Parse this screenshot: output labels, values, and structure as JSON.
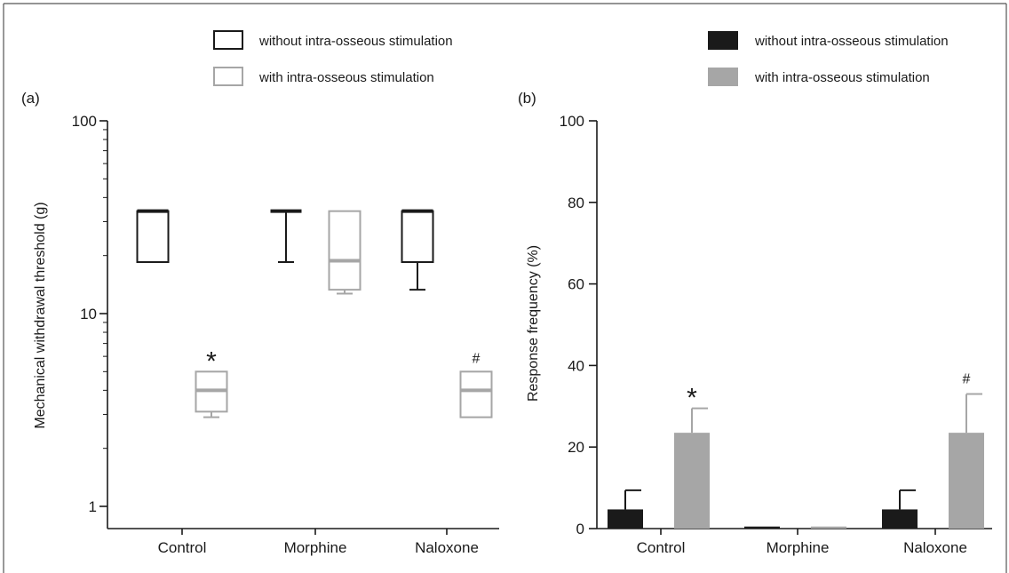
{
  "chart_data": [
    {
      "panel_label": "(a)",
      "type": "box",
      "ylabel": "Mechanical withdrawal threshold (g)",
      "yscale": "log",
      "ylim": [
        1,
        100
      ],
      "yticks": [
        1,
        10,
        100
      ],
      "ytick_labels": [
        "1",
        "10",
        "100"
      ],
      "categories": [
        "Control",
        "Morphine",
        "Naloxone"
      ],
      "legend": {
        "entries": [
          {
            "label": "without intra-osseous stimulation",
            "color": "#1a1a1a",
            "style": "open-box"
          },
          {
            "label": "with intra-osseous stimulation",
            "color": "#a6a6a6",
            "style": "open-box"
          }
        ]
      },
      "series": [
        {
          "name": "without intra-osseous stimulation",
          "color": "#1a1a1a",
          "boxes": [
            {
              "category": "Control",
              "min": 18.5,
              "q1": 18.5,
              "median": 34,
              "q3": 34,
              "max": 34
            },
            {
              "category": "Morphine",
              "min": 18.5,
              "q1": 34,
              "median": 34,
              "q3": 34,
              "max": 34
            },
            {
              "category": "Naloxone",
              "min": 13.3,
              "q1": 18.5,
              "median": 34,
              "q3": 34,
              "max": 34
            }
          ]
        },
        {
          "name": "with intra-osseous stimulation",
          "color": "#a6a6a6",
          "boxes": [
            {
              "category": "Control",
              "min": 2.9,
              "q1": 3.1,
              "median": 4.0,
              "q3": 5.0,
              "max": 5.0
            },
            {
              "category": "Morphine",
              "min": 12.7,
              "q1": 13.3,
              "median": 18.8,
              "q3": 34,
              "max": 34
            },
            {
              "category": "Naloxone",
              "min": 2.9,
              "q1": 2.9,
              "median": 4.0,
              "q3": 5.0,
              "max": 5.0
            }
          ]
        }
      ],
      "annotations": [
        {
          "text": "*",
          "category": "Control",
          "series": 1
        },
        {
          "text": "#",
          "category": "Naloxone",
          "series": 1
        }
      ]
    },
    {
      "panel_label": "(b)",
      "type": "bar",
      "ylabel": "Response frequency (%)",
      "ylim": [
        0,
        100
      ],
      "yticks": [
        0,
        20,
        40,
        60,
        80,
        100
      ],
      "ytick_labels": [
        "0",
        "20",
        "40",
        "60",
        "80",
        "100"
      ],
      "categories": [
        "Control",
        "Morphine",
        "Naloxone"
      ],
      "legend": {
        "entries": [
          {
            "label": "without intra-osseous stimulation",
            "color": "#1a1a1a",
            "style": "filled"
          },
          {
            "label": "with intra-osseous stimulation",
            "color": "#a6a6a6",
            "style": "filled"
          }
        ]
      },
      "series": [
        {
          "name": "without intra-osseous stimulation",
          "color": "#1a1a1a",
          "values": [
            4.7,
            0.5,
            4.7
          ],
          "errors": [
            4.7,
            0,
            4.7
          ]
        },
        {
          "name": "with intra-osseous stimulation",
          "color": "#a6a6a6",
          "values": [
            23.5,
            0.5,
            23.5
          ],
          "errors": [
            6.0,
            0,
            9.5
          ]
        }
      ],
      "annotations": [
        {
          "text": "*",
          "category": "Control",
          "series": 1
        },
        {
          "text": "#",
          "category": "Naloxone",
          "series": 1
        }
      ]
    }
  ]
}
